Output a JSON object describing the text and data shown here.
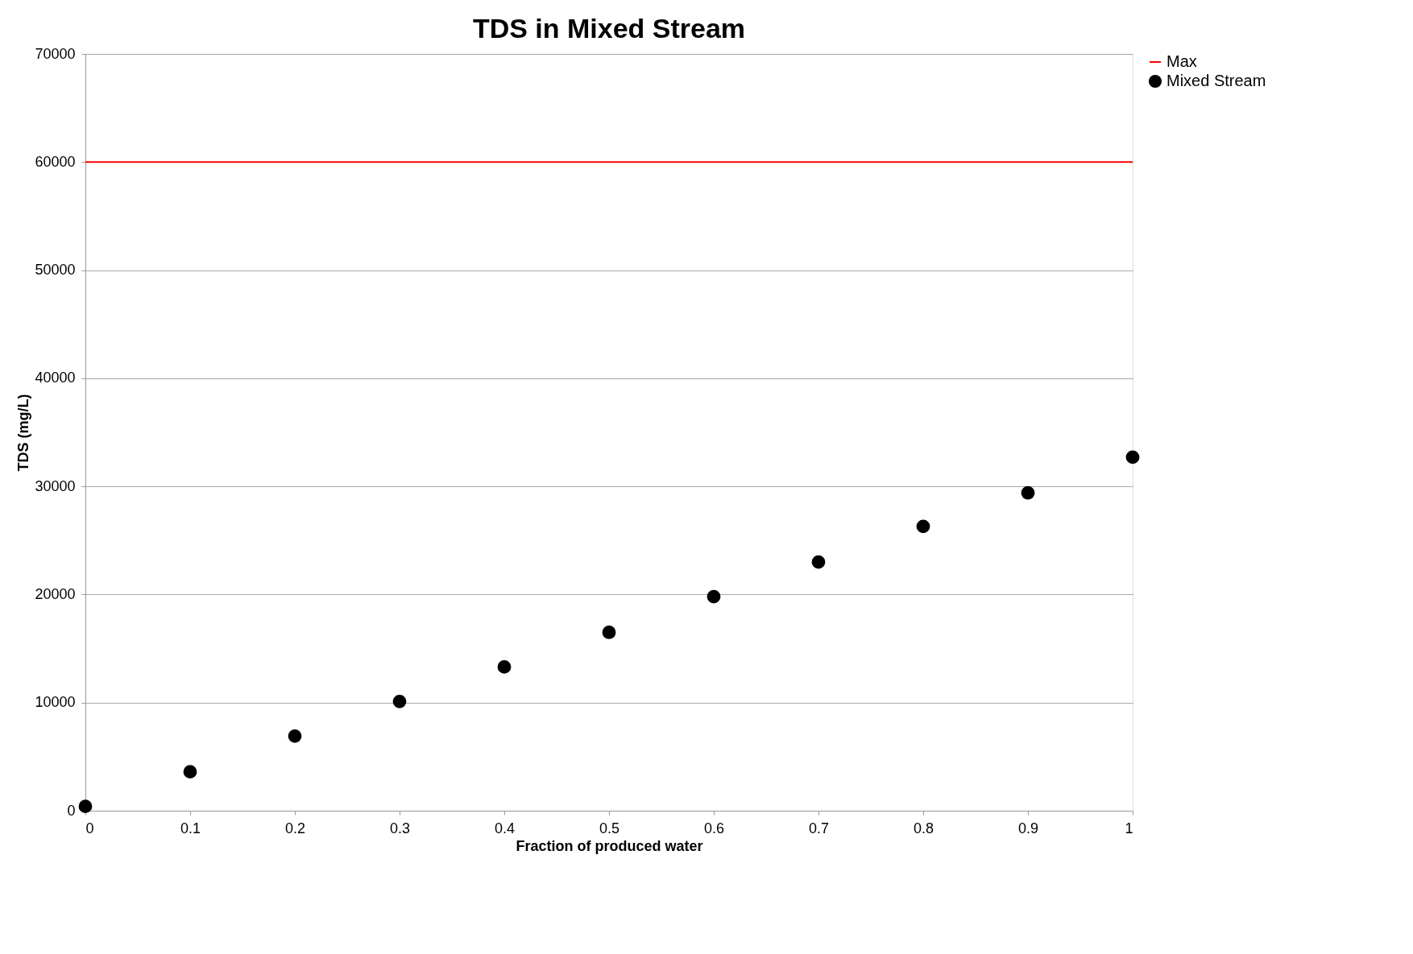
{
  "chart_data": {
    "type": "scatter",
    "title": "TDS in Mixed Stream",
    "xlabel": "Fraction of produced water",
    "ylabel": "TDS (mg/L)",
    "x": [
      0,
      0.1,
      0.2,
      0.3,
      0.4,
      0.5,
      0.6,
      0.7,
      0.8,
      0.9,
      1
    ],
    "series": [
      {
        "name": "Mixed Stream",
        "color": "#000000",
        "values": [
          400,
          3600,
          6900,
          10100,
          13300,
          16500,
          19800,
          23000,
          26300,
          29400,
          32700
        ]
      }
    ],
    "ref_lines": [
      {
        "axis": "y",
        "value": 60000,
        "label": "Max",
        "color": "#ff0000"
      }
    ],
    "xlim": [
      0,
      1
    ],
    "xticks": [
      0,
      0.1,
      0.2,
      0.3,
      0.4,
      0.5,
      0.6,
      0.7,
      0.8,
      0.9,
      1
    ],
    "ylim": [
      0,
      70000
    ],
    "yticks": [
      0,
      10000,
      20000,
      30000,
      40000,
      50000,
      60000,
      70000
    ],
    "grid": "y",
    "legend": "right",
    "marker": "circle"
  }
}
